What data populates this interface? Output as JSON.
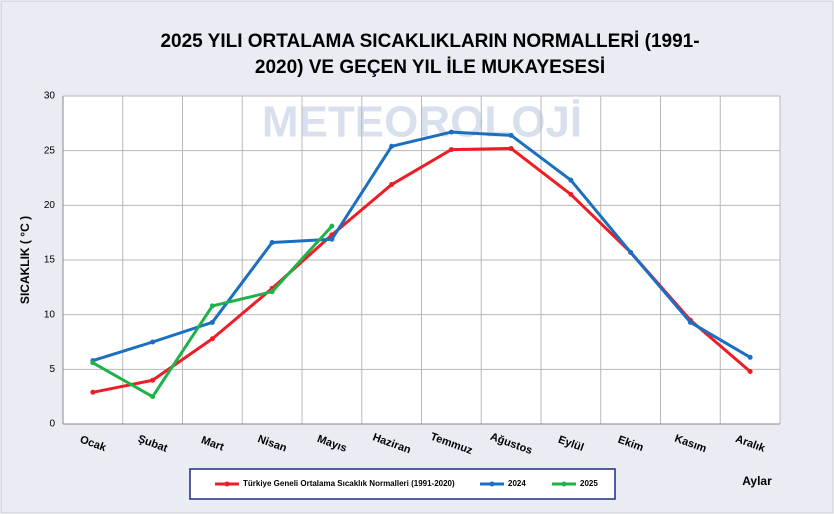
{
  "chart_data": {
    "type": "line",
    "title": [
      "2025 YILI ORTALAMA SICAKLIKLARIN NORMALLERİ (1991-",
      "2020) VE GEÇEN YIL İLE MUKAYESESİ"
    ],
    "watermark": "METEOROLOJİ",
    "y_label": "SICAKLIK ( °C )",
    "x_label": "Aylar",
    "categories": [
      "Ocak",
      "Şubat",
      "Mart",
      "Nisan",
      "Mayıs",
      "Haziran",
      "Temmuz",
      "Ağustos",
      "Eylül",
      "Ekim",
      "Kasım",
      "Aralık"
    ],
    "series": [
      {
        "name": "Türkiye Geneli Ortalama Sıcaklık Normalleri (1991-2020)",
        "color": "#ee1c25",
        "values": [
          2.9,
          4.0,
          7.8,
          12.4,
          17.3,
          21.9,
          25.1,
          25.2,
          21.0,
          15.7,
          9.5,
          4.8
        ]
      },
      {
        "name": "2024",
        "color": "#1a6fc0",
        "values": [
          5.8,
          7.5,
          9.3,
          16.6,
          16.9,
          25.4,
          26.7,
          26.4,
          22.3,
          15.7,
          9.3,
          6.1
        ]
      },
      {
        "name": "2025",
        "color": "#1fb24a",
        "values": [
          5.6,
          2.5,
          10.8,
          12.1,
          18.1,
          null,
          null,
          null,
          null,
          null,
          null,
          null
        ]
      }
    ],
    "ylim": [
      0,
      30
    ],
    "yticks": [
      0,
      5,
      10,
      15,
      20,
      25,
      30
    ],
    "grid": true,
    "legend": "bottom"
  }
}
